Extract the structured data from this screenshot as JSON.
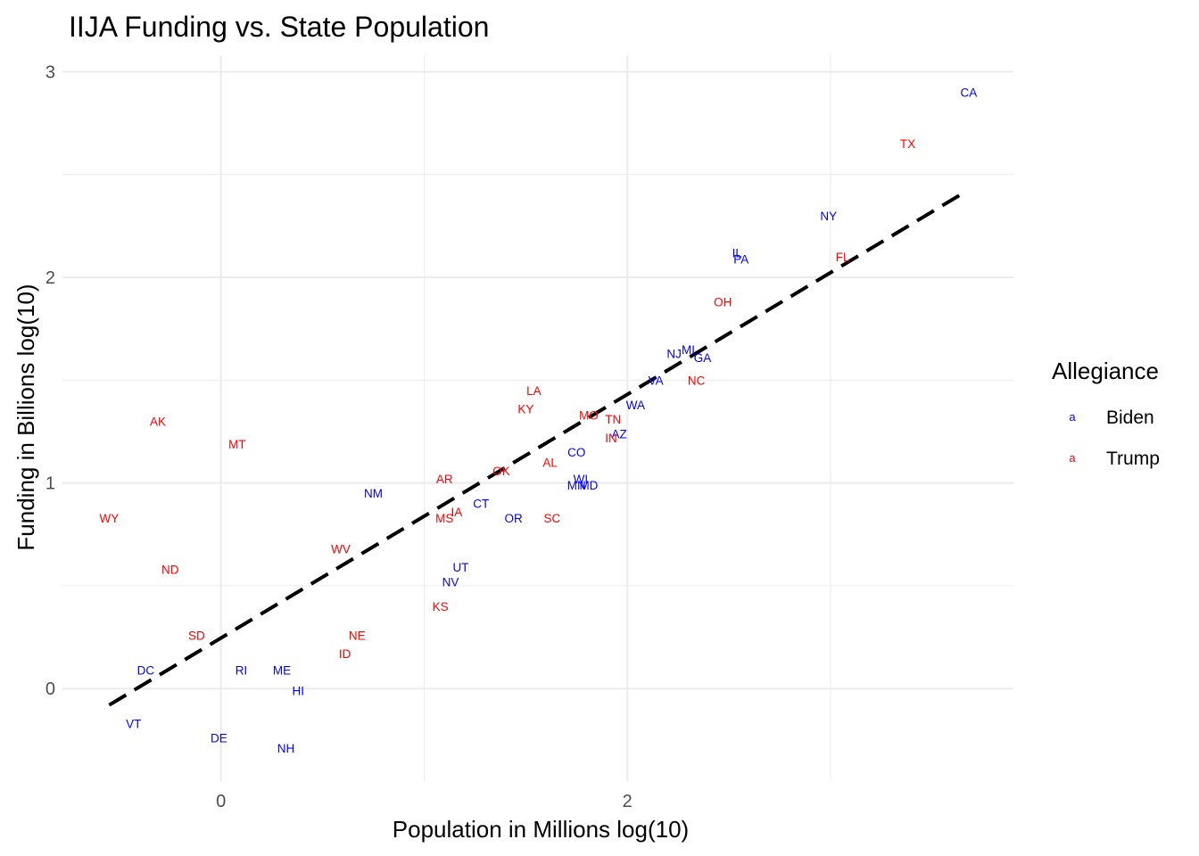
{
  "chart_data": {
    "type": "scatter",
    "title": "IIJA Funding vs. State Population",
    "xlabel": "Population in Millions log(10)",
    "ylabel": "Funding in Billions log(10)",
    "xlim": [
      -0.78,
      3.9
    ],
    "ylim": [
      -0.45,
      3.08
    ],
    "x_ticks": [
      {
        "value": 0,
        "label": "0"
      },
      {
        "value": 2,
        "label": "2"
      }
    ],
    "y_ticks": [
      {
        "value": 0,
        "label": "0"
      },
      {
        "value": 1,
        "label": "1"
      },
      {
        "value": 2,
        "label": "2"
      },
      {
        "value": 3,
        "label": "3"
      }
    ],
    "grid": true,
    "legend": {
      "title": "Allegiance",
      "position": "right",
      "key_glyph": "a",
      "entries": [
        {
          "name": "Biden",
          "color": "#0000ff"
        },
        {
          "name": "Trump",
          "color": "#ff0000"
        }
      ]
    },
    "trend_line": {
      "style": "dashed",
      "color": "#000000",
      "x": [
        -0.55,
        3.67
      ],
      "y": [
        -0.08,
        2.42
      ]
    },
    "series": [
      {
        "name": "Biden",
        "color": "#0000ff",
        "points": [
          {
            "label": "CA",
            "x": 3.68,
            "y": 2.9
          },
          {
            "label": "NY",
            "x": 2.99,
            "y": 2.3
          },
          {
            "label": "IL",
            "x": 2.54,
            "y": 2.12
          },
          {
            "label": "PA",
            "x": 2.56,
            "y": 2.09
          },
          {
            "label": "NJ",
            "x": 2.23,
            "y": 1.63
          },
          {
            "label": "MI",
            "x": 2.3,
            "y": 1.65
          },
          {
            "label": "GA",
            "x": 2.37,
            "y": 1.61
          },
          {
            "label": "VA",
            "x": 2.14,
            "y": 1.5
          },
          {
            "label": "WA",
            "x": 2.04,
            "y": 1.38
          },
          {
            "label": "AZ",
            "x": 1.96,
            "y": 1.24
          },
          {
            "label": "CO",
            "x": 1.75,
            "y": 1.15
          },
          {
            "label": "WI",
            "x": 1.77,
            "y": 1.02
          },
          {
            "label": "MN",
            "x": 1.75,
            "y": 0.99
          },
          {
            "label": "MD",
            "x": 1.81,
            "y": 0.99
          },
          {
            "label": "NM",
            "x": 0.75,
            "y": 0.95
          },
          {
            "label": "CT",
            "x": 1.28,
            "y": 0.9
          },
          {
            "label": "OR",
            "x": 1.44,
            "y": 0.83
          },
          {
            "label": "UT",
            "x": 1.18,
            "y": 0.59
          },
          {
            "label": "NV",
            "x": 1.13,
            "y": 0.52
          },
          {
            "label": "DC",
            "x": -0.37,
            "y": 0.09
          },
          {
            "label": "RI",
            "x": 0.1,
            "y": 0.09
          },
          {
            "label": "ME",
            "x": 0.3,
            "y": 0.09
          },
          {
            "label": "HI",
            "x": 0.38,
            "y": -0.01
          },
          {
            "label": "VT",
            "x": -0.43,
            "y": -0.17
          },
          {
            "label": "DE",
            "x": -0.01,
            "y": -0.24
          },
          {
            "label": "NH",
            "x": 0.32,
            "y": -0.29
          }
        ]
      },
      {
        "name": "Trump",
        "color": "#ff0000",
        "points": [
          {
            "label": "TX",
            "x": 3.38,
            "y": 2.65
          },
          {
            "label": "FL",
            "x": 3.06,
            "y": 2.1
          },
          {
            "label": "OH",
            "x": 2.47,
            "y": 1.88
          },
          {
            "label": "NC",
            "x": 2.34,
            "y": 1.5
          },
          {
            "label": "LA",
            "x": 1.54,
            "y": 1.45
          },
          {
            "label": "KY",
            "x": 1.5,
            "y": 1.36
          },
          {
            "label": "MO",
            "x": 1.81,
            "y": 1.33
          },
          {
            "label": "TN",
            "x": 1.93,
            "y": 1.31
          },
          {
            "label": "IN",
            "x": 1.92,
            "y": 1.22
          },
          {
            "label": "AL",
            "x": 1.62,
            "y": 1.1
          },
          {
            "label": "OK",
            "x": 1.38,
            "y": 1.06
          },
          {
            "label": "AR",
            "x": 1.1,
            "y": 1.02
          },
          {
            "label": "IA",
            "x": 1.16,
            "y": 0.86
          },
          {
            "label": "MS",
            "x": 1.1,
            "y": 0.83
          },
          {
            "label": "SC",
            "x": 1.63,
            "y": 0.83
          },
          {
            "label": "WV",
            "x": 0.59,
            "y": 0.68
          },
          {
            "label": "KS",
            "x": 1.08,
            "y": 0.4
          },
          {
            "label": "NE",
            "x": 0.67,
            "y": 0.26
          },
          {
            "label": "ID",
            "x": 0.61,
            "y": 0.17
          },
          {
            "label": "AK",
            "x": -0.31,
            "y": 1.3
          },
          {
            "label": "MT",
            "x": 0.08,
            "y": 1.19
          },
          {
            "label": "WY",
            "x": -0.55,
            "y": 0.83
          },
          {
            "label": "ND",
            "x": -0.25,
            "y": 0.58
          },
          {
            "label": "SD",
            "x": -0.12,
            "y": 0.26
          }
        ]
      }
    ]
  }
}
